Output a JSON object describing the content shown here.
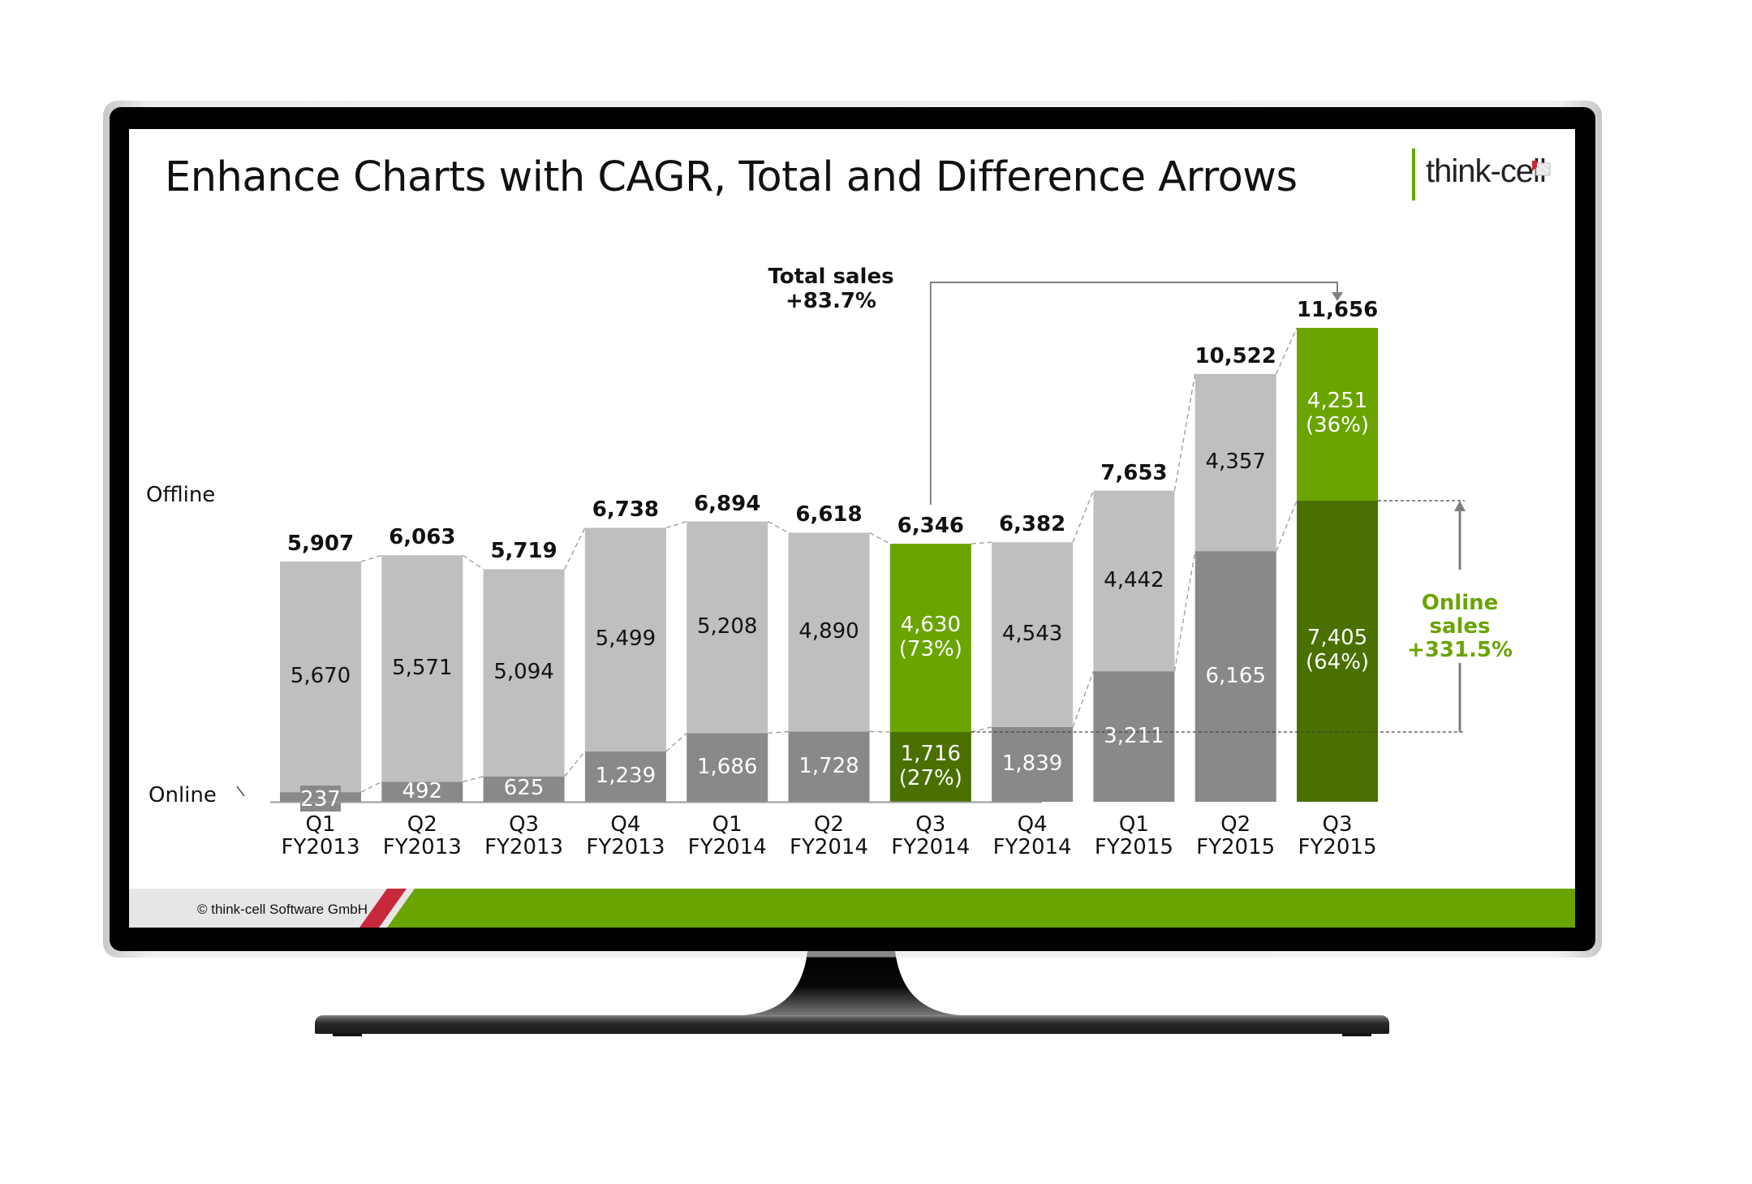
{
  "slide": {
    "title": "Enhance Charts with CAGR, Total and Difference Arrows",
    "logo_text": "think-cell",
    "footer_text": "© think-cell Software GmbH"
  },
  "colors": {
    "offline": "#bfbfbf",
    "online": "#898989",
    "highlight_offline": "#6aa400",
    "highlight_online": "#4a7000",
    "brand_green": "#6aa400",
    "brand_red": "#c8283c",
    "annotation_line": "#808080"
  },
  "chart_data": {
    "type": "bar",
    "stacked": true,
    "title": "",
    "categories": [
      "Q1 FY2013",
      "Q2 FY2013",
      "Q3 FY2013",
      "Q4 FY2013",
      "Q1 FY2014",
      "Q2 FY2014",
      "Q3 FY2014",
      "Q4 FY2014",
      "Q1 FY2015",
      "Q2 FY2015",
      "Q3 FY2015"
    ],
    "category_lines": [
      [
        "Q1",
        "FY2013"
      ],
      [
        "Q2",
        "FY2013"
      ],
      [
        "Q3",
        "FY2013"
      ],
      [
        "Q4",
        "FY2013"
      ],
      [
        "Q1",
        "FY2014"
      ],
      [
        "Q2",
        "FY2014"
      ],
      [
        "Q3",
        "FY2014"
      ],
      [
        "Q4",
        "FY2014"
      ],
      [
        "Q1",
        "FY2015"
      ],
      [
        "Q2",
        "FY2015"
      ],
      [
        "Q3",
        "FY2015"
      ]
    ],
    "series": [
      {
        "name": "Online",
        "values": [
          237,
          492,
          625,
          1239,
          1686,
          1728,
          1716,
          1839,
          3211,
          6165,
          7405
        ]
      },
      {
        "name": "Offline",
        "values": [
          5670,
          5571,
          5094,
          5499,
          5208,
          4890,
          4630,
          4543,
          4442,
          4357,
          4251
        ]
      }
    ],
    "totals": [
      5907,
      6063,
      5719,
      6738,
      6894,
      6618,
      6346,
      6382,
      7653,
      10522,
      11656
    ],
    "total_labels": [
      "5,907",
      "6,063",
      "5,719",
      "6,738",
      "6,894",
      "6,618",
      "6,346",
      "6,382",
      "7,653",
      "10,522",
      "11,656"
    ],
    "online_labels": [
      "237",
      "492",
      "625",
      "1,239",
      "1,686",
      "1,728",
      "1,716\n(27%)",
      "1,839",
      "3,211",
      "6,165",
      "7,405\n(64%)"
    ],
    "offline_labels": [
      "5,670",
      "5,571",
      "5,094",
      "5,499",
      "5,208",
      "4,890",
      "4,630\n(73%)",
      "4,543",
      "4,442",
      "4,357",
      "4,251\n(36%)"
    ],
    "highlighted_categories": [
      "Q3 FY2014",
      "Q3 FY2015"
    ],
    "legend": [
      "Offline",
      "Online"
    ],
    "legend_position": "left (series labels)",
    "xlabel": "",
    "ylabel": "",
    "ylim": [
      0,
      11656
    ],
    "grid": false,
    "annotations": [
      {
        "type": "total-difference-arrow",
        "from": "Q3 FY2014",
        "to": "Q3 FY2015",
        "label": "Total sales",
        "value": "+83.7%"
      },
      {
        "type": "segment-difference-arrow",
        "series": "Online",
        "from": "Q3 FY2014",
        "to": "Q3 FY2015",
        "label": "Online sales",
        "value": "+331.5%"
      }
    ]
  },
  "annotations": {
    "total_title": "Total sales",
    "total_value": "+83.7%",
    "online_line1": "Online",
    "online_line2": "sales",
    "online_value": "+331.5%"
  },
  "series_labels": {
    "offline": "Offline",
    "online": "Online"
  }
}
